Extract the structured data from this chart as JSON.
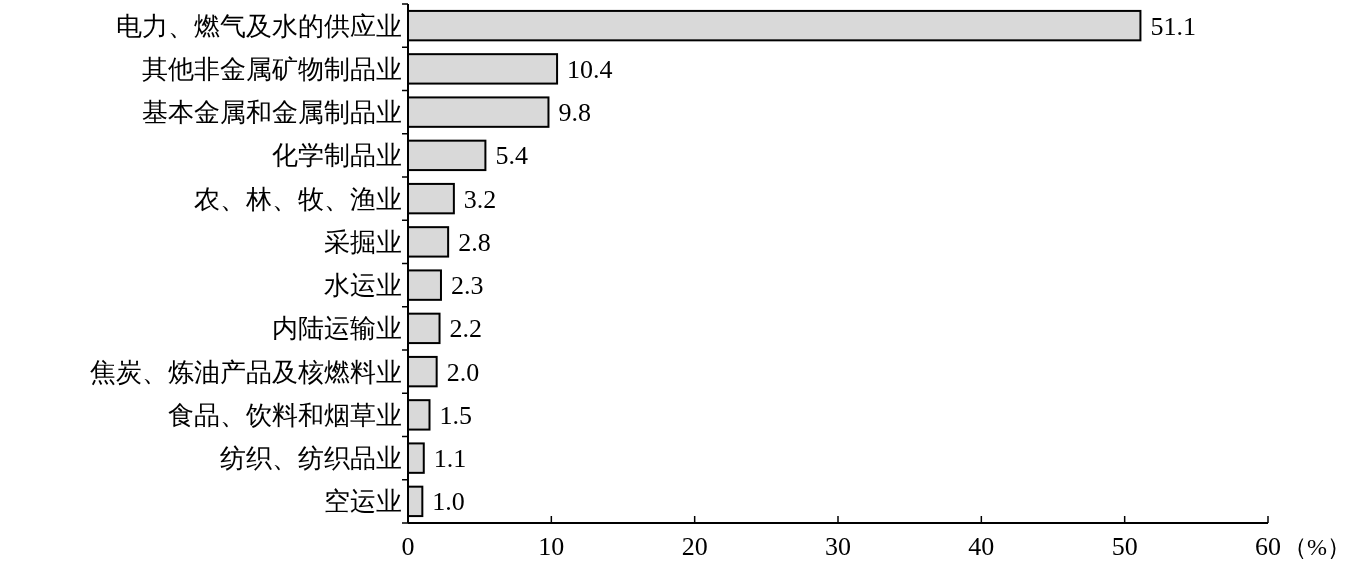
{
  "chart_data": {
    "type": "bar",
    "orientation": "horizontal",
    "categories": [
      "电力、燃气及水的供应业",
      "其他非金属矿物制品业",
      "基本金属和金属制品业",
      "化学制品业",
      "农、林、牧、渔业",
      "采掘业",
      "水运业",
      "内陆运输业",
      "焦炭、炼油产品及核燃料业",
      "食品、饮料和烟草业",
      "纺织、纺织品业",
      "空运业"
    ],
    "values": [
      51.1,
      10.4,
      9.8,
      5.4,
      3.2,
      2.8,
      2.3,
      2.2,
      2.0,
      1.5,
      1.1,
      1.0
    ],
    "value_labels": [
      "51.1",
      "10.4",
      "9.8",
      "5.4",
      "3.2",
      "2.8",
      "2.3",
      "2.2",
      "2.0",
      "1.5",
      "1.1",
      "1.0"
    ],
    "color": "#d9d9d9",
    "xlim": [
      0,
      60
    ],
    "xticks": [
      0,
      10,
      20,
      30,
      40,
      50,
      60
    ],
    "xlabel": "（%）"
  }
}
